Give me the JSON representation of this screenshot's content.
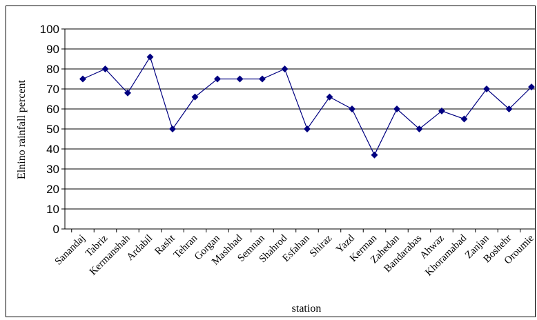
{
  "chart_data": {
    "type": "line",
    "title": "",
    "xlabel": "station",
    "ylabel": "Elnino rainfall percent",
    "ylim": [
      0,
      100
    ],
    "yticks": [
      0,
      10,
      20,
      30,
      40,
      50,
      60,
      70,
      80,
      90,
      100
    ],
    "grid": true,
    "legend": "none",
    "line_color": "#000080",
    "categories": [
      "Sanandaj",
      "Tabriz",
      "Kermanshah",
      "Ardabil",
      "Rasht",
      "Tehran",
      "Gorgan",
      "Mashhad",
      "Semnan",
      "Shahrod",
      "Esfahan",
      "Shiraz",
      "Yazd",
      "Kerman",
      "Zahedan",
      "Bandarabas",
      "Ahwaz",
      "Khoramabad",
      "Zanjan",
      "Boshehr",
      "Oroumie"
    ],
    "values": [
      75,
      80,
      68,
      86,
      50,
      66,
      75,
      75,
      75,
      80,
      50,
      66,
      60,
      37,
      60,
      50,
      59,
      55,
      70,
      60,
      71
    ]
  }
}
